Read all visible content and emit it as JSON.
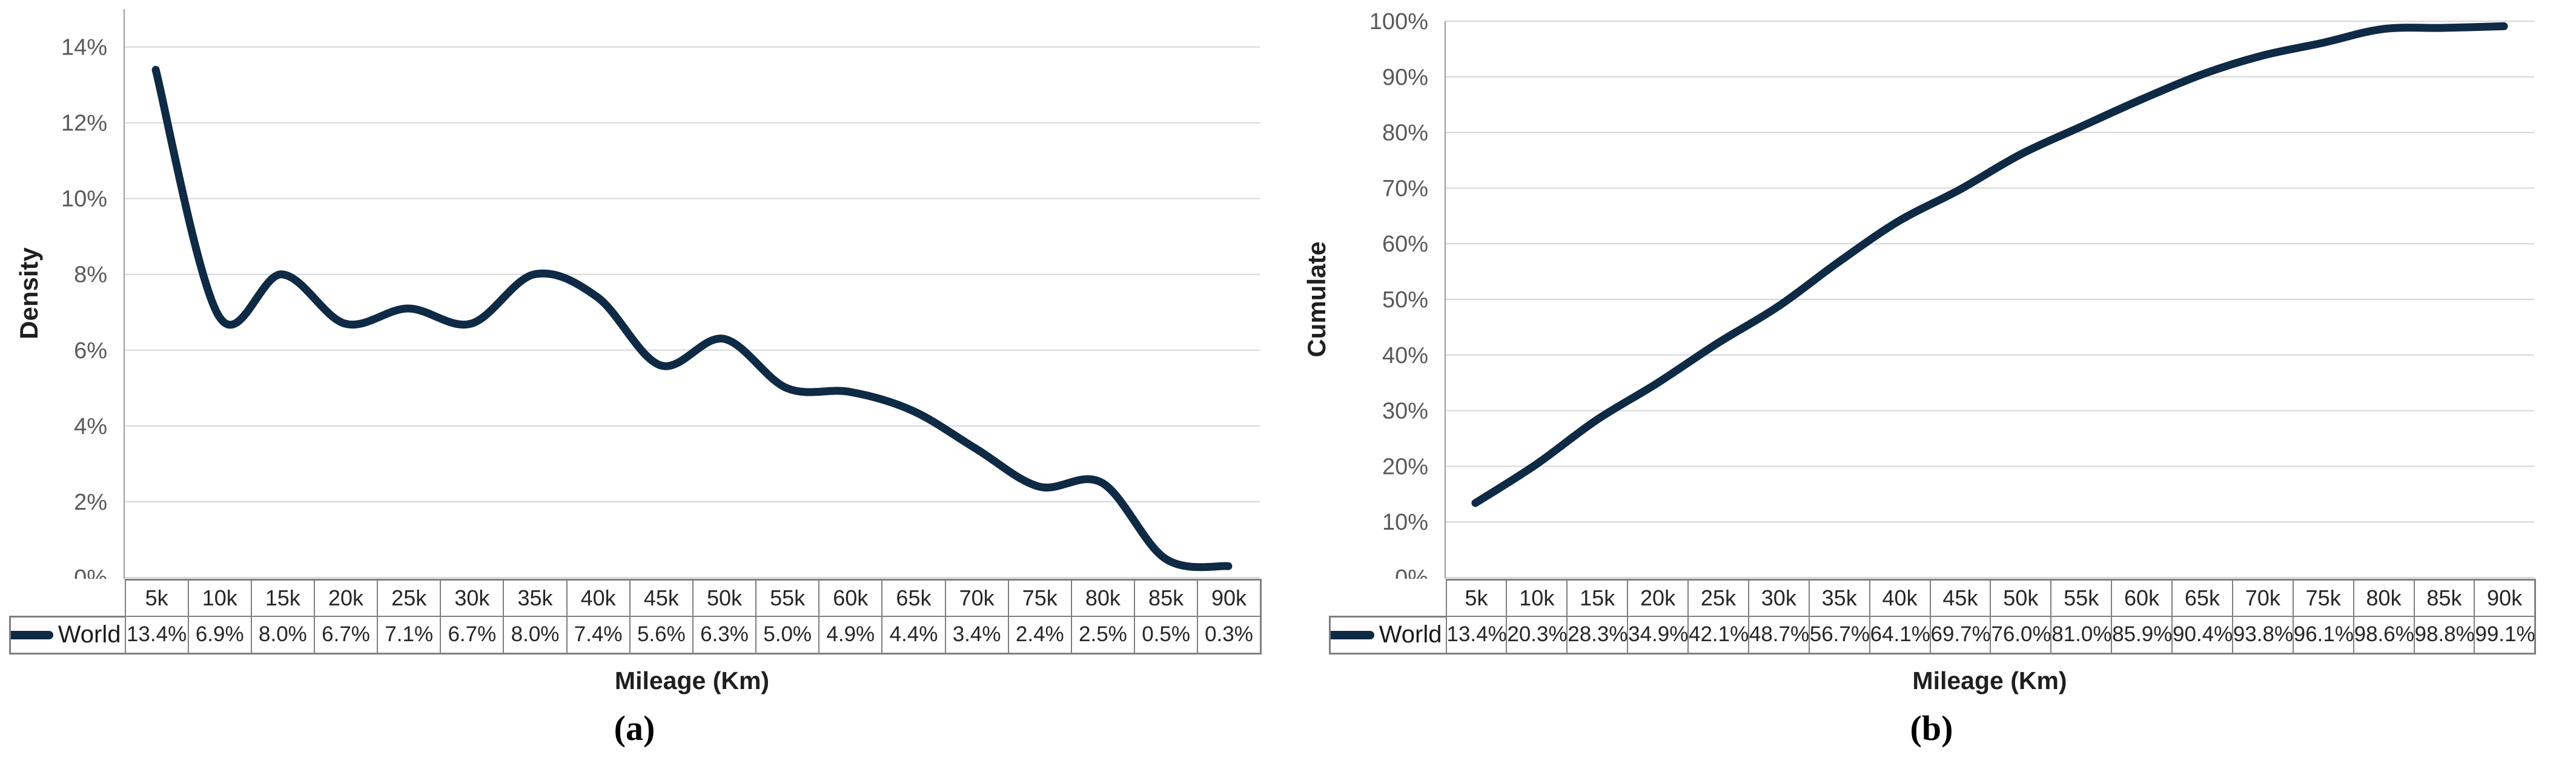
{
  "colors": {
    "line": "#0e2a45",
    "gridline": "#d6d6d6",
    "axis_line": "#9c9c9c",
    "tick_label": "#595959",
    "axis_title": "#1f1f1f",
    "table_border": "#7f7f7f",
    "table_text": "#262626"
  },
  "chart_data": [
    {
      "type": "line",
      "caption": "(a)",
      "title": "",
      "ylabel": "Density",
      "xlabel": "Mileage (Km)",
      "grid": "horizontal",
      "legend_position": "table-left",
      "smooth": true,
      "categories": [
        "5k",
        "10k",
        "15k",
        "20k",
        "25k",
        "30k",
        "35k",
        "40k",
        "45k",
        "50k",
        "55k",
        "60k",
        "65k",
        "70k",
        "75k",
        "80k",
        "85k",
        "90k"
      ],
      "series": [
        {
          "name": "World",
          "values": [
            13.4,
            6.9,
            8.0,
            6.7,
            7.1,
            6.7,
            8.0,
            7.4,
            5.6,
            6.3,
            5.0,
            4.9,
            4.4,
            3.4,
            2.4,
            2.5,
            0.5,
            0.3
          ]
        }
      ],
      "table_values": [
        "13.4%",
        "6.9%",
        "8.0%",
        "6.7%",
        "7.1%",
        "6.7%",
        "8.0%",
        "7.4%",
        "5.6%",
        "6.3%",
        "5.0%",
        "4.9%",
        "4.4%",
        "3.4%",
        "2.4%",
        "2.5%",
        "0.5%",
        "0.3%"
      ],
      "ylim": [
        0,
        15
      ],
      "ytick_step": 2,
      "ytick_labels": [
        "0%",
        "2%",
        "4%",
        "6%",
        "8%",
        "10%",
        "12%",
        "14%"
      ]
    },
    {
      "type": "line",
      "caption": "(b)",
      "title": "",
      "ylabel": "Cumulate",
      "xlabel": "Mileage (Km)",
      "grid": "horizontal",
      "legend_position": "table-left",
      "smooth": true,
      "categories": [
        "5k",
        "10k",
        "15k",
        "20k",
        "25k",
        "30k",
        "35k",
        "40k",
        "45k",
        "50k",
        "55k",
        "60k",
        "65k",
        "70k",
        "75k",
        "80k",
        "85k",
        "90k"
      ],
      "series": [
        {
          "name": "World",
          "values": [
            13.4,
            20.3,
            28.3,
            34.9,
            42.1,
            48.7,
            56.7,
            64.1,
            69.7,
            76.0,
            81.0,
            85.9,
            90.4,
            93.8,
            96.1,
            98.6,
            98.8,
            99.1
          ]
        }
      ],
      "table_values": [
        "13.4%",
        "20.3%",
        "28.3%",
        "34.9%",
        "42.1%",
        "48.7%",
        "56.7%",
        "64.1%",
        "69.7%",
        "76.0%",
        "81.0%",
        "85.9%",
        "90.4%",
        "93.8%",
        "96.1%",
        "98.6%",
        "98.8%",
        "99.1%"
      ],
      "ylim": [
        0,
        100
      ],
      "ytick_step": 10,
      "ytick_labels": [
        "0%",
        "10%",
        "20%",
        "30%",
        "40%",
        "50%",
        "60%",
        "70%",
        "80%",
        "90%",
        "100%"
      ]
    }
  ]
}
